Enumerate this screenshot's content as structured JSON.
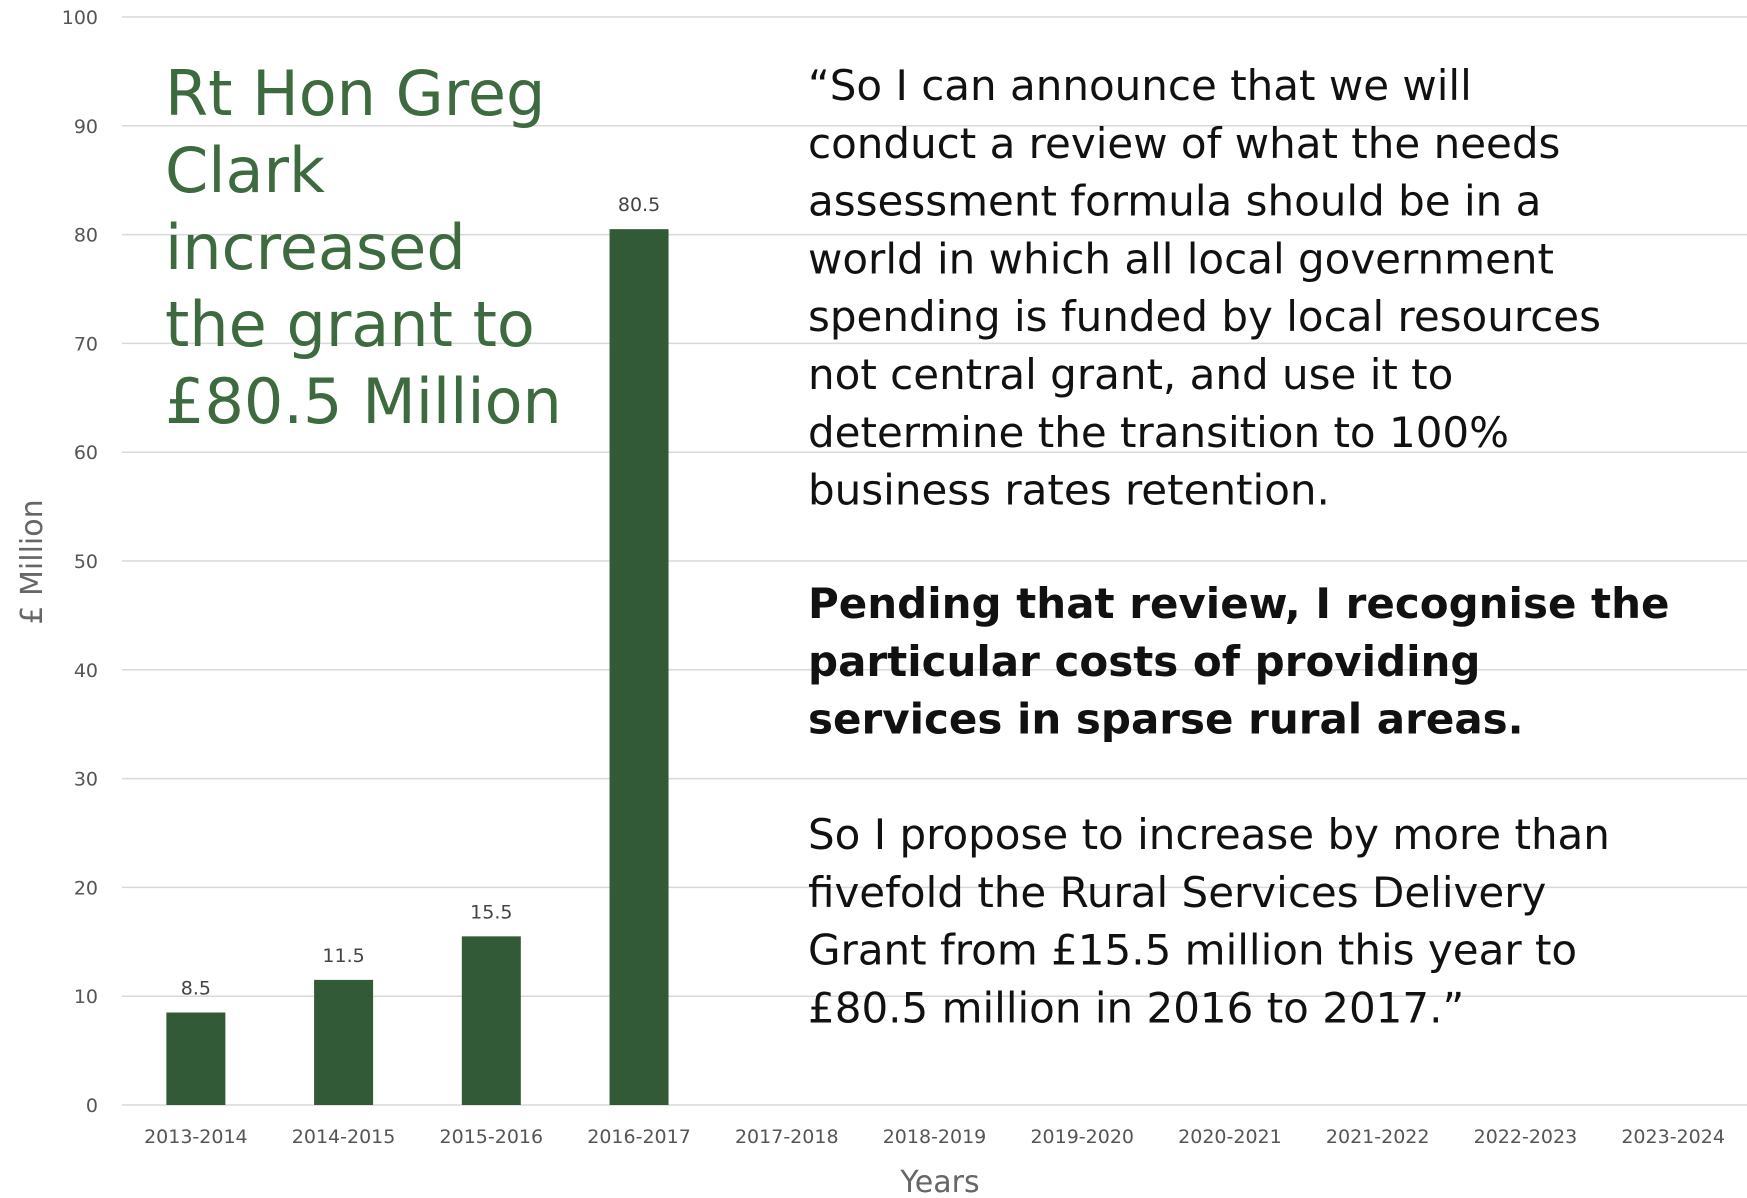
{
  "chart_data": {
    "type": "bar",
    "categories": [
      "2013-2014",
      "2014-2015",
      "2015-2016",
      "2016-2017",
      "2017-2018",
      "2018-2019",
      "2019-2020",
      "2020-2021",
      "2021-2022",
      "2022-2023",
      "2023-2024"
    ],
    "values": [
      8.5,
      11.5,
      15.5,
      80.5,
      null,
      null,
      null,
      null,
      null,
      null,
      null
    ],
    "color": "#335a36",
    "ylim": [
      0,
      100
    ],
    "yticks": [
      0,
      10,
      20,
      30,
      40,
      50,
      60,
      70,
      80,
      90,
      100
    ],
    "grid": true,
    "y_label": "£ Million",
    "x_label": "Years",
    "annotation": [
      "Rt Hon Greg",
      "Clark",
      "increased",
      "the grant to",
      "£80.5 Million"
    ],
    "quote": [
      [
        "“So I can announce that we will",
        "conduct a review of what the needs",
        "assessment formula should be in a",
        "world in which all local government",
        "spending is funded by local resources",
        "not central grant, and use it to",
        "determine the transition to 100%",
        "business rates retention."
      ],
      [
        "Pending that review, I recognise the",
        "particular costs of providing",
        "services in sparse rural areas."
      ],
      [
        "So I propose to increase by more than",
        "fivefold the Rural Services Delivery",
        "Grant from £15.5 million this year to",
        "£80.5 million in 2016 to 2017.”"
      ]
    ]
  }
}
